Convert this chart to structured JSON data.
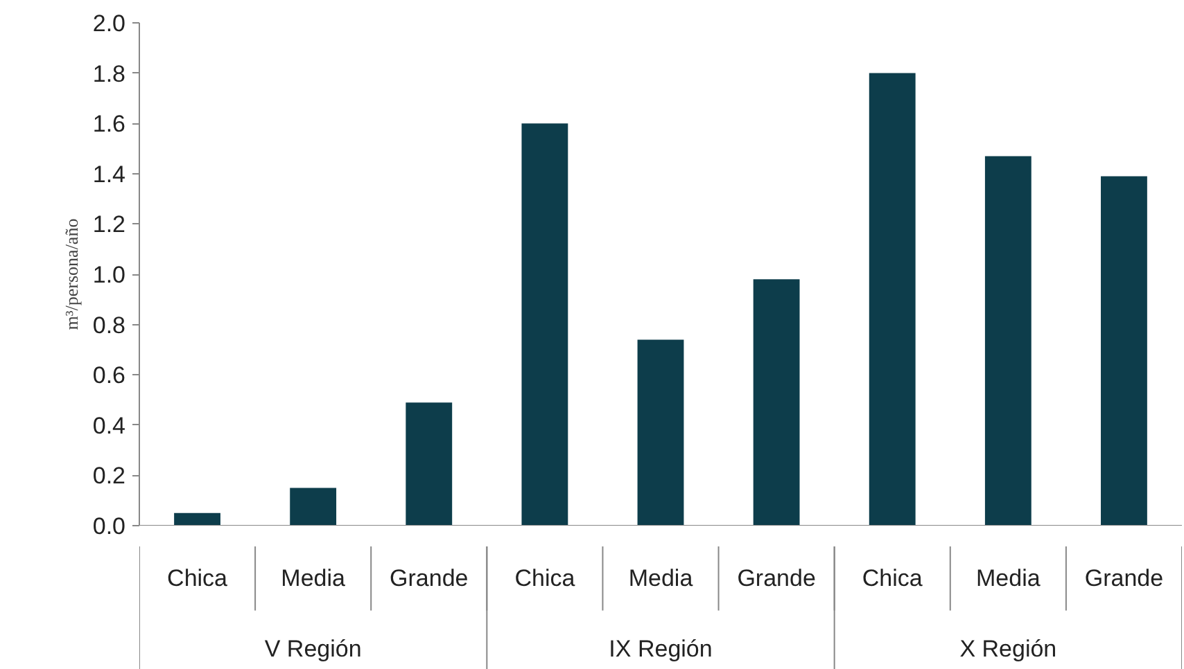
{
  "chart_data": {
    "type": "bar",
    "ylabel": "m³/persona/año",
    "categories": [
      "Chica",
      "Media",
      "Grande",
      "Chica",
      "Media",
      "Grande",
      "Chica",
      "Media",
      "Grande"
    ],
    "values": [
      0.05,
      0.15,
      0.49,
      1.6,
      0.74,
      0.98,
      1.8,
      1.47,
      1.39
    ],
    "color": "#0d3d4b",
    "annotations": [
      "V Región",
      "IX Región",
      "X Región"
    ],
    "ylim": [
      0,
      2.0
    ],
    "yticks": [
      {
        "value": 0,
        "label": "0.0"
      },
      {
        "value": 0.2,
        "label": "0.2"
      },
      {
        "value": 0.4,
        "label": "0.4"
      },
      {
        "value": 0.6,
        "label": "0.6"
      },
      {
        "value": 0.8,
        "label": "0.8"
      },
      {
        "value": 1.0,
        "label": "1.0"
      },
      {
        "value": 1.2,
        "label": "1.2"
      },
      {
        "value": 1.4,
        "label": "1.4"
      },
      {
        "value": 1.6,
        "label": "1.6"
      },
      {
        "value": 1.8,
        "label": "1.8"
      },
      {
        "value": 2.0,
        "label": "2.0"
      }
    ],
    "grid": false
  }
}
